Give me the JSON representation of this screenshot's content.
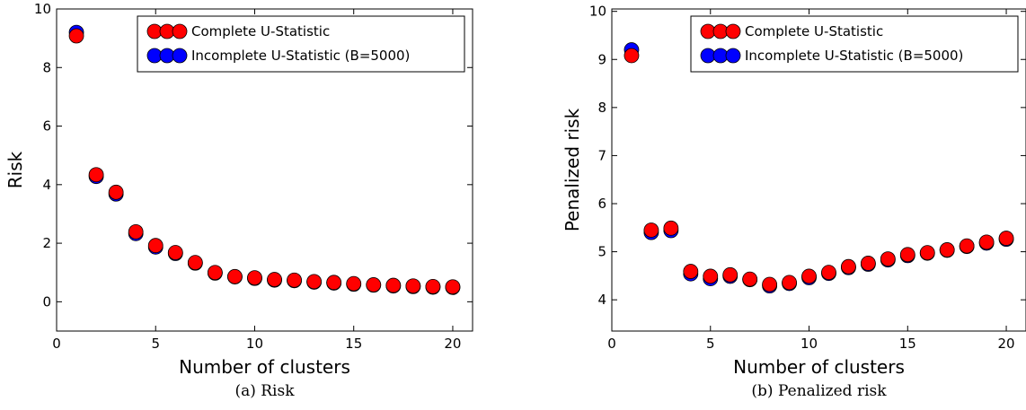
{
  "colors": {
    "complete": "#ff0000",
    "incomplete": "#0000ff",
    "edge": "#000000"
  },
  "chart_data": [
    {
      "type": "scatter",
      "caption": "(a) Risk",
      "xlabel": "Number of clusters",
      "ylabel": "Risk",
      "xlim": [
        0,
        21
      ],
      "ylim": [
        -1,
        10
      ],
      "xticks": [
        0,
        5,
        10,
        15,
        20
      ],
      "yticks": [
        0,
        2,
        4,
        6,
        8,
        10
      ],
      "legend_position": "top-right",
      "x": [
        1,
        2,
        3,
        4,
        5,
        6,
        7,
        8,
        9,
        10,
        11,
        12,
        13,
        14,
        15,
        16,
        17,
        18,
        19,
        20
      ],
      "series": [
        {
          "name": "Incomplete U-Statistic (B=5000)",
          "color": "#0000ff",
          "values": [
            9.2,
            4.28,
            3.68,
            2.33,
            1.87,
            1.65,
            1.32,
            0.98,
            0.85,
            0.8,
            0.74,
            0.72,
            0.67,
            0.64,
            0.6,
            0.57,
            0.54,
            0.52,
            0.5,
            0.49
          ]
        },
        {
          "name": "Complete U-Statistic",
          "color": "#ff0000",
          "values": [
            9.08,
            4.34,
            3.74,
            2.39,
            1.92,
            1.68,
            1.34,
            1.0,
            0.86,
            0.82,
            0.76,
            0.74,
            0.69,
            0.66,
            0.62,
            0.58,
            0.56,
            0.54,
            0.52,
            0.51
          ]
        }
      ]
    },
    {
      "type": "scatter",
      "caption": "(b) Penalized risk",
      "xlabel": "Number of clusters",
      "ylabel": "Penalized risk",
      "xlim": [
        0,
        21
      ],
      "ylim": [
        3.35,
        10.05
      ],
      "xticks": [
        0,
        5,
        10,
        15,
        20
      ],
      "yticks": [
        4,
        5,
        6,
        7,
        8,
        9,
        10
      ],
      "legend_position": "top-right",
      "x": [
        1,
        2,
        3,
        4,
        5,
        6,
        7,
        8,
        9,
        10,
        11,
        12,
        13,
        14,
        15,
        16,
        17,
        18,
        19,
        20
      ],
      "series": [
        {
          "name": "Incomplete U-Statistic (B=5000)",
          "color": "#0000ff",
          "values": [
            9.2,
            5.4,
            5.44,
            4.54,
            4.44,
            4.49,
            4.42,
            4.29,
            4.34,
            4.46,
            4.55,
            4.67,
            4.74,
            4.83,
            4.92,
            4.97,
            5.03,
            5.11,
            5.18,
            5.26
          ]
        },
        {
          "name": "Complete U-Statistic",
          "color": "#ff0000",
          "values": [
            9.08,
            5.45,
            5.49,
            4.59,
            4.49,
            4.52,
            4.43,
            4.32,
            4.36,
            4.49,
            4.57,
            4.69,
            4.76,
            4.85,
            4.94,
            4.98,
            5.04,
            5.12,
            5.2,
            5.28
          ]
        }
      ]
    }
  ]
}
